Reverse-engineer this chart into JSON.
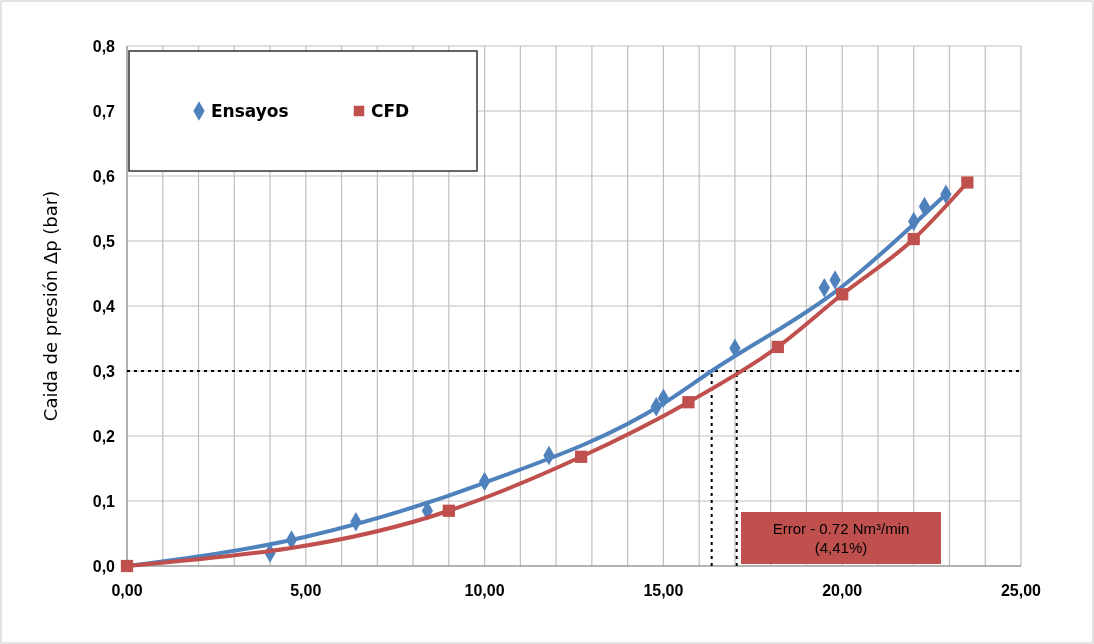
{
  "chart_data": {
    "type": "scatter",
    "ylabel": "Caida de presión Δp (bar)",
    "xlim": [
      0,
      25
    ],
    "ylim": [
      0,
      0.8
    ],
    "xticks": [
      {
        "value": 0,
        "label": "0,00"
      },
      {
        "value": 1,
        "label": null
      },
      {
        "value": 2,
        "label": null
      },
      {
        "value": 3,
        "label": null
      },
      {
        "value": 4,
        "label": null
      },
      {
        "value": 5,
        "label": "5,00"
      },
      {
        "value": 6,
        "label": null
      },
      {
        "value": 7,
        "label": null
      },
      {
        "value": 8,
        "label": null
      },
      {
        "value": 9,
        "label": null
      },
      {
        "value": 10,
        "label": "10,00"
      },
      {
        "value": 11,
        "label": null
      },
      {
        "value": 12,
        "label": null
      },
      {
        "value": 13,
        "label": null
      },
      {
        "value": 14,
        "label": null
      },
      {
        "value": 15,
        "label": "15,00"
      },
      {
        "value": 16,
        "label": null
      },
      {
        "value": 17,
        "label": null
      },
      {
        "value": 18,
        "label": null
      },
      {
        "value": 19,
        "label": null
      },
      {
        "value": 20,
        "label": "20,00"
      },
      {
        "value": 21,
        "label": null
      },
      {
        "value": 22,
        "label": null
      },
      {
        "value": 23,
        "label": null
      },
      {
        "value": 24,
        "label": null
      },
      {
        "value": 25,
        "label": "25,00"
      }
    ],
    "yticks": [
      {
        "value": 0,
        "label": "0,0"
      },
      {
        "value": 0.1,
        "label": "0,1"
      },
      {
        "value": 0.2,
        "label": "0,2"
      },
      {
        "value": 0.3,
        "label": "0,3"
      },
      {
        "value": 0.4,
        "label": "0,4"
      },
      {
        "value": 0.5,
        "label": "0,5"
      },
      {
        "value": 0.6,
        "label": "0,6"
      },
      {
        "value": 0.7,
        "label": "0,7"
      },
      {
        "value": 0.8,
        "label": "0,8"
      }
    ],
    "grid": true,
    "legend": "top left",
    "series": [
      {
        "type": "line",
        "color": "#4f81bd",
        "marker": "none",
        "x": [
          0,
          5,
          10,
          15,
          16.35,
          20,
          22.9
        ],
        "values": [
          0,
          0.045,
          0.128,
          0.25,
          0.3,
          0.43,
          0.572
        ]
      },
      {
        "name": "Ensayos",
        "color": "#4f81bd",
        "marker": "diamond",
        "x": [
          4.0,
          4.6,
          6.4,
          8.4,
          10.0,
          11.8,
          14.8,
          15.0,
          17.0,
          19.5,
          19.8,
          22.0,
          22.3,
          22.9
        ],
        "values": [
          0.02,
          0.04,
          0.068,
          0.085,
          0.13,
          0.17,
          0.245,
          0.258,
          0.335,
          0.428,
          0.44,
          0.53,
          0.553,
          0.572
        ]
      },
      {
        "name": "CFD",
        "type": "line",
        "color": "#c0504d",
        "marker": "square",
        "x": [
          0,
          9.0,
          12.7,
          15.7,
          18.2,
          20.0,
          22.0,
          23.5
        ],
        "values": [
          0,
          0.085,
          0.168,
          0.252,
          0.337,
          0.418,
          0.503,
          0.59
        ]
      }
    ],
    "ref_lines": [
      {
        "axis": "y",
        "value": 0.3,
        "line_style": "dotted",
        "color": "#000000"
      },
      {
        "axis": "x",
        "value": 16.35,
        "line_style": "dotted",
        "color": "#000000"
      },
      {
        "axis": "x",
        "value": 17.05,
        "line_style": "dotted",
        "color": "#000000"
      }
    ],
    "annotations": [
      "Error - 0.72 Nm³/min (4,41%)"
    ]
  }
}
